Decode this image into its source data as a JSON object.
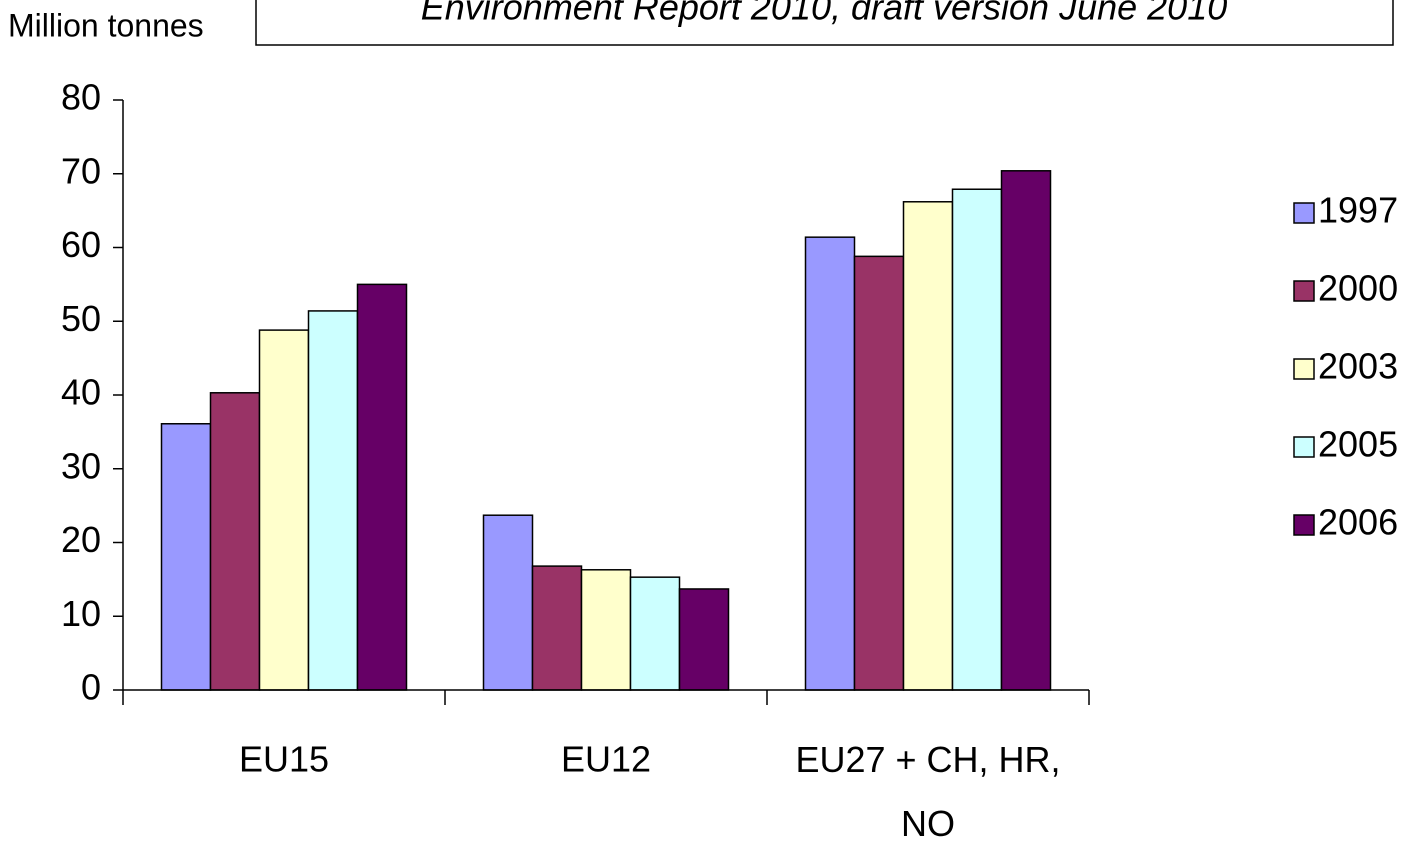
{
  "chart_data": {
    "type": "bar",
    "title": "Environment Report 2010, draft version June 2010",
    "y_label": "Million tonnes",
    "categories": [
      "EU15",
      "EU12",
      "EU27 + CH, HR, NO"
    ],
    "series": [
      {
        "name": "1997",
        "color": "#9999ff",
        "values": [
          36.1,
          23.7,
          61.4
        ]
      },
      {
        "name": "2000",
        "color": "#993366",
        "values": [
          40.3,
          16.8,
          58.8
        ]
      },
      {
        "name": "2003",
        "color": "#ffffcc",
        "values": [
          48.8,
          16.3,
          66.2
        ]
      },
      {
        "name": "2005",
        "color": "#ccffff",
        "values": [
          51.4,
          15.3,
          67.9
        ]
      },
      {
        "name": "2006",
        "color": "#660066",
        "values": [
          55.0,
          13.7,
          70.4
        ]
      }
    ],
    "ylim": [
      0,
      80
    ],
    "yticks": [
      0,
      10,
      20,
      30,
      40,
      50,
      60,
      70,
      80
    ],
    "grid": false,
    "legend": "right"
  }
}
